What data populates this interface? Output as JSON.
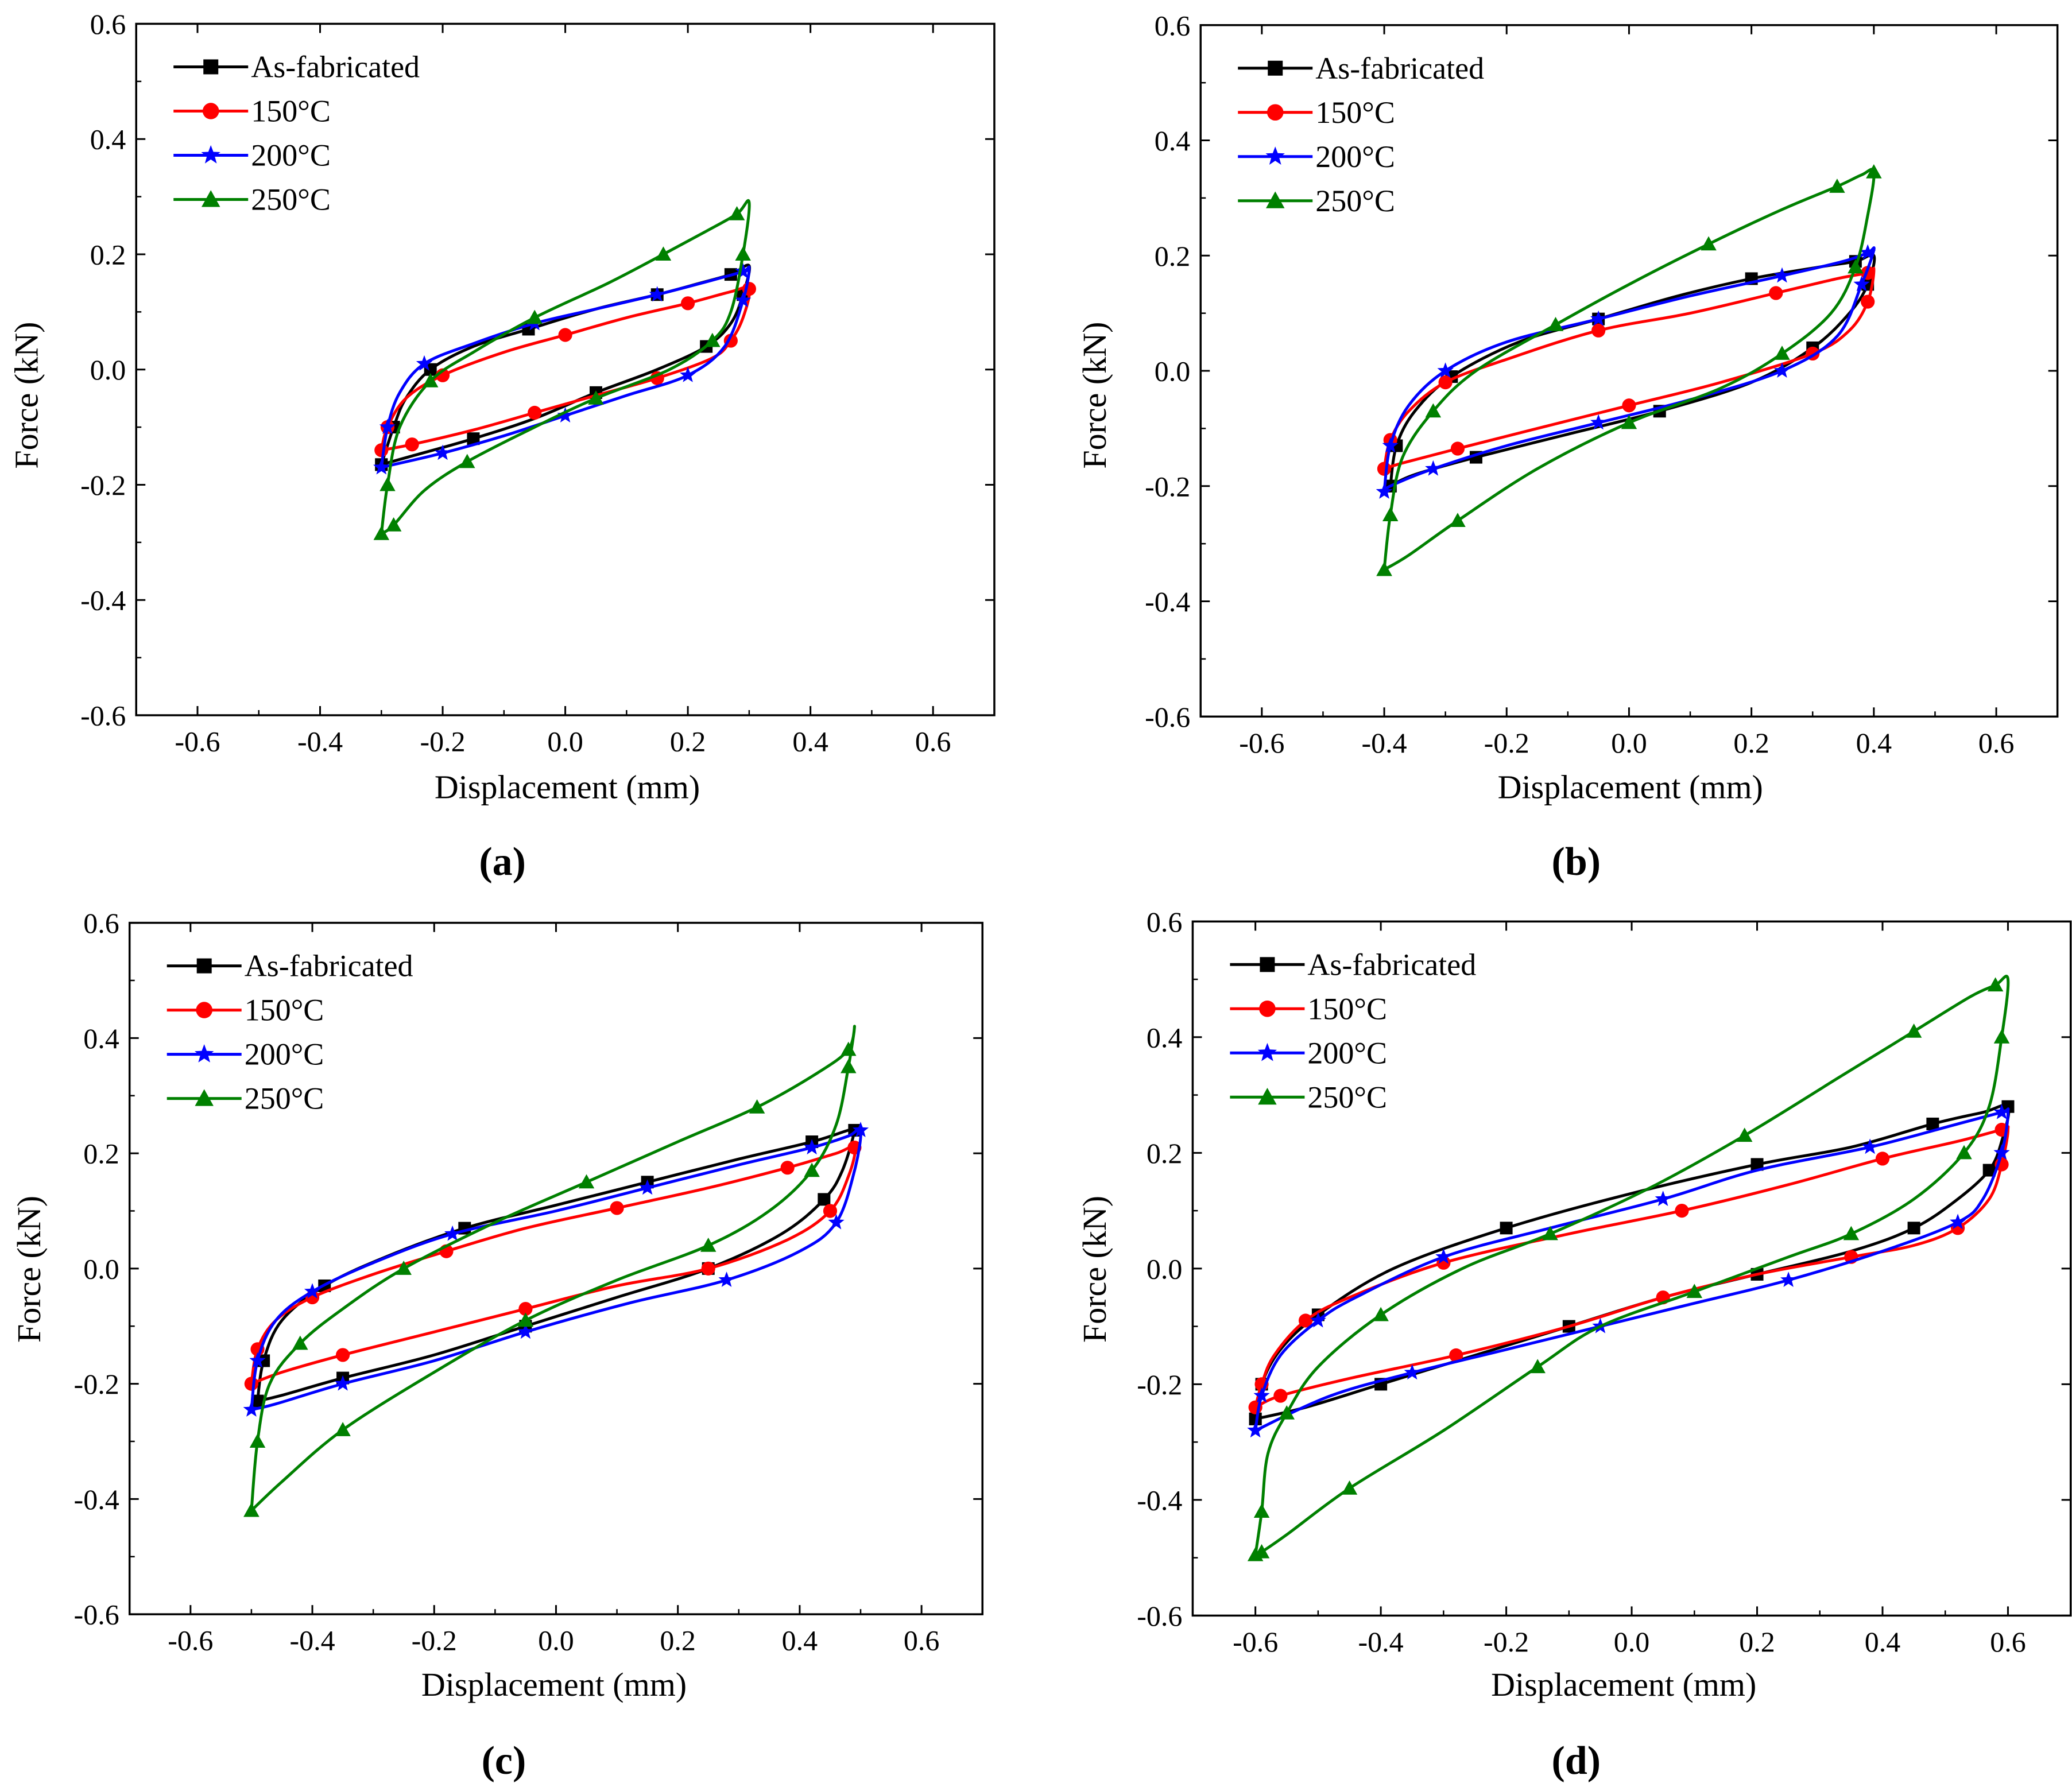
{
  "chart_data": [
    {
      "panel": "(a)",
      "type": "line",
      "xlabel": "Displacement (mm)",
      "ylabel": "Force (kN)",
      "xlim": [
        -0.7,
        0.7
      ],
      "ylim": [
        -0.6,
        0.6
      ],
      "xticks": [
        "-0.6",
        "-0.4",
        "-0.2",
        "0.0",
        "0.2",
        "0.4",
        "0.6"
      ],
      "yticks": [
        "-0.6",
        "-0.4",
        "-0.2",
        "0.0",
        "0.2",
        "0.4",
        "0.6"
      ],
      "legend_position": "top-left",
      "series": [
        {
          "name": "As-fabricated",
          "color": "#000000",
          "marker": "square",
          "x": [
            -0.3,
            -0.28,
            -0.26,
            -0.22,
            -0.15,
            -0.06,
            0.05,
            0.15,
            0.22,
            0.27,
            0.3,
            0.29,
            0.27,
            0.23,
            0.15,
            0.05,
            -0.05,
            -0.15,
            -0.25,
            -0.3
          ],
          "y": [
            -0.165,
            -0.1,
            -0.05,
            0.0,
            0.04,
            0.07,
            0.105,
            0.13,
            0.15,
            0.165,
            0.18,
            0.13,
            0.08,
            0.04,
            0.0,
            -0.04,
            -0.085,
            -0.12,
            -0.15,
            -0.165
          ]
        },
        {
          "name": "150°C",
          "color": "#ff0000",
          "marker": "circle",
          "x": [
            -0.3,
            -0.29,
            -0.26,
            -0.2,
            -0.1,
            0.0,
            0.1,
            0.2,
            0.27,
            0.3,
            0.29,
            0.27,
            0.24,
            0.15,
            0.05,
            -0.05,
            -0.15,
            -0.25,
            -0.3
          ],
          "y": [
            -0.14,
            -0.1,
            -0.05,
            -0.01,
            0.03,
            0.06,
            0.09,
            0.115,
            0.135,
            0.14,
            0.09,
            0.05,
            0.02,
            -0.015,
            -0.045,
            -0.075,
            -0.105,
            -0.13,
            -0.14
          ]
        },
        {
          "name": "200°C",
          "color": "#0000ff",
          "marker": "star",
          "x": [
            -0.3,
            -0.29,
            -0.27,
            -0.23,
            -0.15,
            -0.05,
            0.05,
            0.15,
            0.24,
            0.29,
            0.3,
            0.29,
            0.26,
            0.2,
            0.1,
            0.0,
            -0.1,
            -0.2,
            -0.28,
            -0.3
          ],
          "y": [
            -0.17,
            -0.1,
            -0.04,
            0.01,
            0.045,
            0.08,
            0.105,
            0.13,
            0.155,
            0.17,
            0.175,
            0.12,
            0.04,
            -0.01,
            -0.045,
            -0.08,
            -0.115,
            -0.145,
            -0.165,
            -0.17
          ]
        },
        {
          "name": "250°C",
          "color": "#008000",
          "marker": "triangle",
          "x": [
            -0.3,
            -0.29,
            -0.27,
            -0.22,
            -0.15,
            -0.05,
            0.07,
            0.16,
            0.23,
            0.28,
            0.3,
            0.29,
            0.27,
            0.24,
            0.17,
            0.05,
            -0.05,
            -0.16,
            -0.23,
            -0.28,
            -0.3
          ],
          "y": [
            -0.285,
            -0.2,
            -0.1,
            -0.02,
            0.03,
            0.09,
            0.15,
            0.2,
            0.24,
            0.27,
            0.29,
            0.2,
            0.1,
            0.05,
            0.0,
            -0.05,
            -0.1,
            -0.16,
            -0.21,
            -0.27,
            -0.285
          ]
        }
      ]
    },
    {
      "panel": "(b)",
      "type": "line",
      "xlabel": "Displacement (mm)",
      "ylabel": "Force (kN)",
      "xlim": [
        -0.7,
        0.7
      ],
      "ylim": [
        -0.6,
        0.6
      ],
      "xticks": [
        "-0.6",
        "-0.4",
        "-0.2",
        "0.0",
        "0.2",
        "0.4",
        "0.6"
      ],
      "yticks": [
        "-0.6",
        "-0.4",
        "-0.2",
        "0.0",
        "0.2",
        "0.4",
        "0.6"
      ],
      "legend_position": "top-left",
      "series": [
        {
          "name": "As-fabricated",
          "color": "#000000",
          "marker": "square",
          "x": [
            -0.39,
            -0.38,
            -0.35,
            -0.29,
            -0.18,
            -0.05,
            0.08,
            0.2,
            0.31,
            0.37,
            0.4,
            0.39,
            0.36,
            0.3,
            0.2,
            0.05,
            -0.1,
            -0.25,
            -0.35,
            -0.39
          ],
          "y": [
            -0.2,
            -0.13,
            -0.07,
            -0.01,
            0.05,
            0.09,
            0.13,
            0.16,
            0.18,
            0.19,
            0.2,
            0.15,
            0.1,
            0.04,
            -0.02,
            -0.07,
            -0.11,
            -0.15,
            -0.18,
            -0.2
          ]
        },
        {
          "name": "150°C",
          "color": "#ff0000",
          "marker": "circle",
          "x": [
            -0.4,
            -0.39,
            -0.36,
            -0.3,
            -0.2,
            -0.05,
            0.1,
            0.24,
            0.34,
            0.39,
            0.4,
            0.39,
            0.36,
            0.3,
            0.15,
            0.0,
            -0.15,
            -0.28,
            -0.37,
            -0.4
          ],
          "y": [
            -0.17,
            -0.12,
            -0.07,
            -0.02,
            0.02,
            0.07,
            0.1,
            0.135,
            0.16,
            0.17,
            0.175,
            0.12,
            0.07,
            0.03,
            -0.02,
            -0.06,
            -0.1,
            -0.135,
            -0.16,
            -0.17
          ]
        },
        {
          "name": "200°C",
          "color": "#0000ff",
          "marker": "star",
          "x": [
            -0.4,
            -0.39,
            -0.36,
            -0.3,
            -0.2,
            -0.05,
            0.1,
            0.25,
            0.35,
            0.39,
            0.4,
            0.38,
            0.34,
            0.25,
            0.1,
            -0.05,
            -0.2,
            -0.32,
            -0.39,
            -0.4
          ],
          "y": [
            -0.21,
            -0.13,
            -0.06,
            0.0,
            0.05,
            0.09,
            0.13,
            0.165,
            0.19,
            0.205,
            0.21,
            0.15,
            0.06,
            0.0,
            -0.05,
            -0.09,
            -0.13,
            -0.17,
            -0.2,
            -0.21
          ]
        },
        {
          "name": "250°C",
          "color": "#008000",
          "marker": "triangle",
          "x": [
            -0.4,
            -0.39,
            -0.37,
            -0.32,
            -0.25,
            -0.12,
            0.0,
            0.13,
            0.25,
            0.34,
            0.38,
            0.4,
            0.39,
            0.37,
            0.33,
            0.25,
            0.15,
            0.0,
            -0.15,
            -0.28,
            -0.36,
            -0.4
          ],
          "y": [
            -0.345,
            -0.25,
            -0.15,
            -0.07,
            0.0,
            0.08,
            0.15,
            0.22,
            0.28,
            0.32,
            0.34,
            0.345,
            0.27,
            0.18,
            0.1,
            0.03,
            -0.03,
            -0.09,
            -0.17,
            -0.26,
            -0.32,
            -0.345
          ]
        }
      ]
    },
    {
      "panel": "(c)",
      "type": "line",
      "xlabel": "Displacement (mm)",
      "ylabel": "Force (kN)",
      "xlim": [
        -0.7,
        0.7
      ],
      "ylim": [
        -0.6,
        0.6
      ],
      "xticks": [
        "-0.6",
        "-0.4",
        "-0.2",
        "0.0",
        "0.2",
        "0.4",
        "0.6"
      ],
      "yticks": [
        "-0.6",
        "-0.4",
        "-0.2",
        "0.0",
        "0.2",
        "0.4",
        "0.6"
      ],
      "legend_position": "top-left",
      "series": [
        {
          "name": "As-fabricated",
          "color": "#000000",
          "marker": "square",
          "x": [
            -0.49,
            -0.48,
            -0.45,
            -0.38,
            -0.28,
            -0.15,
            0.0,
            0.15,
            0.3,
            0.42,
            0.48,
            0.49,
            0.47,
            0.44,
            0.37,
            0.25,
            0.1,
            -0.05,
            -0.2,
            -0.35,
            -0.45,
            -0.49
          ],
          "y": [
            -0.23,
            -0.16,
            -0.09,
            -0.03,
            0.02,
            0.07,
            0.11,
            0.15,
            0.19,
            0.22,
            0.24,
            0.24,
            0.17,
            0.12,
            0.06,
            0.0,
            -0.05,
            -0.1,
            -0.15,
            -0.19,
            -0.22,
            -0.23
          ]
        },
        {
          "name": "150°C",
          "color": "#ff0000",
          "marker": "circle",
          "x": [
            -0.5,
            -0.49,
            -0.46,
            -0.4,
            -0.3,
            -0.18,
            -0.05,
            0.1,
            0.25,
            0.38,
            0.46,
            0.49,
            0.48,
            0.45,
            0.38,
            0.25,
            0.1,
            -0.05,
            -0.2,
            -0.35,
            -0.45,
            -0.5
          ],
          "y": [
            -0.2,
            -0.14,
            -0.09,
            -0.05,
            -0.01,
            0.03,
            0.07,
            0.105,
            0.14,
            0.175,
            0.2,
            0.21,
            0.16,
            0.1,
            0.05,
            0.0,
            -0.03,
            -0.07,
            -0.11,
            -0.15,
            -0.18,
            -0.2
          ]
        },
        {
          "name": "200°C",
          "color": "#0000ff",
          "marker": "star",
          "x": [
            -0.5,
            -0.49,
            -0.46,
            -0.4,
            -0.3,
            -0.17,
            0.0,
            0.15,
            0.3,
            0.42,
            0.48,
            0.5,
            0.49,
            0.46,
            0.4,
            0.28,
            0.12,
            -0.05,
            -0.2,
            -0.35,
            -0.46,
            -0.5
          ],
          "y": [
            -0.245,
            -0.16,
            -0.09,
            -0.04,
            0.01,
            0.06,
            0.1,
            0.14,
            0.18,
            0.21,
            0.23,
            0.24,
            0.17,
            0.08,
            0.03,
            -0.02,
            -0.06,
            -0.11,
            -0.16,
            -0.2,
            -0.235,
            -0.245
          ]
        },
        {
          "name": "250°C",
          "color": "#008000",
          "marker": "triangle",
          "x": [
            -0.5,
            -0.49,
            -0.47,
            -0.42,
            -0.35,
            -0.25,
            -0.1,
            0.05,
            0.2,
            0.33,
            0.43,
            0.48,
            0.49,
            0.48,
            0.46,
            0.42,
            0.35,
            0.25,
            0.1,
            -0.05,
            -0.2,
            -0.35,
            -0.45,
            -0.5
          ],
          "y": [
            -0.42,
            -0.3,
            -0.2,
            -0.13,
            -0.07,
            0.0,
            0.08,
            0.15,
            0.22,
            0.28,
            0.34,
            0.38,
            0.42,
            0.35,
            0.25,
            0.17,
            0.1,
            0.04,
            -0.02,
            -0.09,
            -0.18,
            -0.28,
            -0.37,
            -0.42
          ]
        }
      ]
    },
    {
      "panel": "(d)",
      "type": "line",
      "xlabel": "Displacement (mm)",
      "ylabel": "Force (kN)",
      "xlim": [
        -0.7,
        0.7
      ],
      "ylim": [
        -0.6,
        0.6
      ],
      "xticks": [
        "-0.6",
        "-0.4",
        "-0.2",
        "0.0",
        "0.2",
        "0.4",
        "0.6"
      ],
      "yticks": [
        "-0.6",
        "-0.4",
        "-0.2",
        "0.0",
        "0.2",
        "0.4",
        "0.6"
      ],
      "legend_position": "top-left",
      "series": [
        {
          "name": "As-fabricated",
          "color": "#000000",
          "marker": "square",
          "x": [
            -0.6,
            -0.59,
            -0.56,
            -0.5,
            -0.38,
            -0.2,
            0.0,
            0.2,
            0.35,
            0.48,
            0.56,
            0.6,
            0.59,
            0.57,
            0.52,
            0.45,
            0.35,
            0.2,
            0.05,
            -0.1,
            -0.25,
            -0.4,
            -0.52,
            -0.6
          ],
          "y": [
            -0.26,
            -0.2,
            -0.14,
            -0.08,
            0.0,
            0.07,
            0.13,
            0.18,
            0.21,
            0.25,
            0.27,
            0.28,
            0.22,
            0.17,
            0.12,
            0.07,
            0.03,
            -0.01,
            -0.05,
            -0.1,
            -0.15,
            -0.2,
            -0.24,
            -0.26
          ]
        },
        {
          "name": "150°C",
          "color": "#ff0000",
          "marker": "circle",
          "x": [
            -0.6,
            -0.59,
            -0.57,
            -0.52,
            -0.45,
            -0.3,
            -0.1,
            0.08,
            0.25,
            0.4,
            0.52,
            0.59,
            0.6,
            0.59,
            0.57,
            0.52,
            0.45,
            0.35,
            0.2,
            0.05,
            -0.1,
            -0.28,
            -0.45,
            -0.56,
            -0.6
          ],
          "y": [
            -0.24,
            -0.2,
            -0.15,
            -0.09,
            -0.05,
            0.01,
            0.06,
            0.1,
            0.145,
            0.19,
            0.22,
            0.24,
            0.24,
            0.18,
            0.12,
            0.07,
            0.04,
            0.02,
            -0.01,
            -0.05,
            -0.1,
            -0.15,
            -0.19,
            -0.22,
            -0.24
          ]
        },
        {
          "name": "200°C",
          "color": "#0000ff",
          "marker": "star",
          "x": [
            -0.6,
            -0.59,
            -0.56,
            -0.5,
            -0.44,
            -0.3,
            -0.13,
            0.05,
            0.2,
            0.38,
            0.52,
            0.59,
            0.6,
            0.59,
            0.56,
            0.52,
            0.4,
            0.25,
            0.1,
            -0.05,
            -0.2,
            -0.35,
            -0.48,
            -0.6
          ],
          "y": [
            -0.28,
            -0.22,
            -0.15,
            -0.09,
            -0.05,
            0.02,
            0.07,
            0.12,
            0.17,
            0.21,
            0.25,
            0.27,
            0.27,
            0.2,
            0.12,
            0.08,
            0.03,
            -0.02,
            -0.06,
            -0.1,
            -0.14,
            -0.18,
            -0.22,
            -0.28
          ]
        },
        {
          "name": "250°C",
          "color": "#008000",
          "marker": "triangle",
          "x": [
            -0.6,
            -0.59,
            -0.58,
            -0.55,
            -0.5,
            -0.4,
            -0.27,
            -0.13,
            0.03,
            0.18,
            0.33,
            0.45,
            0.54,
            0.58,
            0.6,
            0.59,
            0.57,
            0.53,
            0.45,
            0.35,
            0.25,
            0.1,
            -0.05,
            -0.15,
            -0.3,
            -0.45,
            -0.55,
            -0.59,
            -0.6
          ],
          "y": [
            -0.495,
            -0.42,
            -0.32,
            -0.25,
            -0.17,
            -0.08,
            0.0,
            0.06,
            0.14,
            0.23,
            0.33,
            0.41,
            0.47,
            0.49,
            0.5,
            0.4,
            0.28,
            0.2,
            0.12,
            0.06,
            0.02,
            -0.04,
            -0.1,
            -0.17,
            -0.28,
            -0.38,
            -0.46,
            -0.49,
            -0.495
          ]
        }
      ]
    }
  ]
}
